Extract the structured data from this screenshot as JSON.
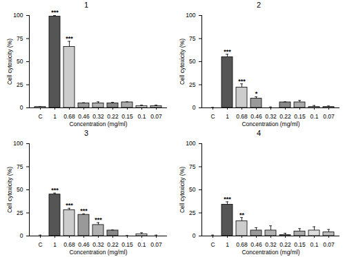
{
  "chart_data": [
    {
      "type": "bar",
      "title": "1",
      "categories": [
        "C",
        "1",
        "0.68",
        "0.46",
        "0.32",
        "0.22",
        "0.15",
        "0.1",
        "0.07"
      ],
      "values": [
        1,
        99,
        66,
        5,
        5,
        5,
        6,
        2,
        2
      ],
      "errors": [
        0.5,
        1,
        6,
        0.5,
        1.5,
        1,
        0.5,
        1,
        1
      ],
      "annotations": [
        null,
        "***",
        "***",
        null,
        null,
        null,
        null,
        null,
        null
      ],
      "colors": [
        "#ffffff",
        "#555555",
        "#cccccc",
        "#999999",
        "#b0b0b0",
        "#888888",
        "#aaaaaa",
        "#dddddd",
        "#bbbbbb"
      ],
      "x_label": "Concentration (mg/ml)",
      "y_label": "Cell cytoxicity (%)",
      "ylim": [
        0,
        100
      ],
      "yticks": [
        0,
        25,
        50,
        75,
        100
      ]
    },
    {
      "type": "bar",
      "title": "2",
      "categories": [
        "C",
        "1",
        "0.68",
        "0.46",
        "0.32",
        "0.22",
        "0.15",
        "0.1",
        "0.07"
      ],
      "values": [
        0,
        55,
        22,
        10,
        0,
        6,
        6,
        1,
        1
      ],
      "errors": [
        0.5,
        3,
        4,
        2,
        1,
        0.5,
        2,
        1.5,
        1
      ],
      "annotations": [
        null,
        "***",
        "***",
        "*",
        null,
        null,
        null,
        null,
        null
      ],
      "colors": [
        "#ffffff",
        "#555555",
        "#cccccc",
        "#999999",
        "#b0b0b0",
        "#888888",
        "#aaaaaa",
        "#dddddd",
        "#bbbbbb"
      ],
      "x_label": "Concentration (mg/ml)",
      "y_label": "Cell cytoxicity (%)",
      "ylim": [
        0,
        100
      ],
      "yticks": [
        0,
        25,
        50,
        75,
        100
      ]
    },
    {
      "type": "bar",
      "title": "3",
      "categories": [
        "C",
        "1",
        "0.68",
        "0.46",
        "0.32",
        "0.22",
        "0.15",
        "0.1",
        "0.07"
      ],
      "values": [
        0,
        45,
        28,
        23,
        12,
        6,
        0,
        2,
        0
      ],
      "errors": [
        1,
        1.5,
        2,
        1,
        2.5,
        0.5,
        0.5,
        1.5,
        1
      ],
      "annotations": [
        null,
        "***",
        "***",
        "***",
        "***",
        null,
        null,
        null,
        null
      ],
      "colors": [
        "#ffffff",
        "#555555",
        "#cccccc",
        "#999999",
        "#b0b0b0",
        "#888888",
        "#aaaaaa",
        "#dddddd",
        "#bbbbbb"
      ],
      "x_label": "Concentration (mg/ml)",
      "y_label": "Cell cytoxicity (%)",
      "ylim": [
        0,
        100
      ],
      "yticks": [
        0,
        25,
        50,
        75,
        100
      ]
    },
    {
      "type": "bar",
      "title": "4",
      "categories": [
        "C",
        "1",
        "0.68",
        "0.46",
        "0.32",
        "0.22",
        "0.15",
        "0.1",
        "0.07"
      ],
      "values": [
        0,
        34,
        16,
        6,
        6,
        1,
        5,
        6,
        4
      ],
      "errors": [
        1,
        3,
        4,
        3,
        5,
        2,
        3,
        4,
        3
      ],
      "annotations": [
        null,
        "***",
        "**",
        null,
        null,
        null,
        null,
        null,
        null
      ],
      "colors": [
        "#ffffff",
        "#555555",
        "#cccccc",
        "#999999",
        "#b0b0b0",
        "#888888",
        "#aaaaaa",
        "#dddddd",
        "#bbbbbb"
      ],
      "x_label": "Concentration (mg/ml)",
      "y_label": "Cell cytoxicity (%)",
      "ylim": [
        0,
        100
      ],
      "yticks": [
        0,
        25,
        50,
        75,
        100
      ]
    }
  ]
}
